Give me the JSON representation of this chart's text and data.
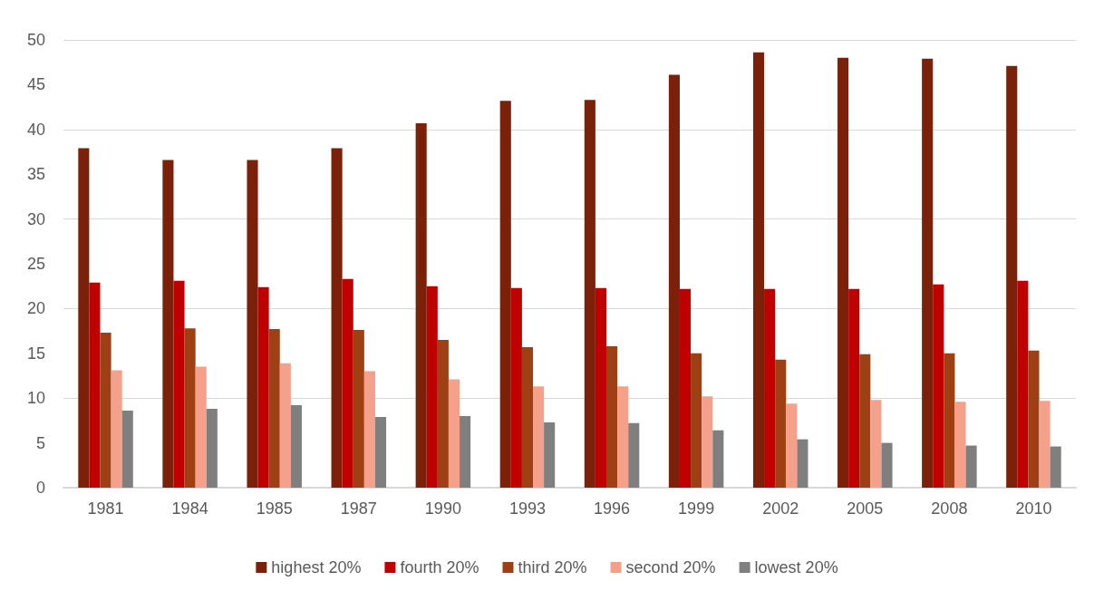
{
  "chart_data": {
    "type": "bar",
    "categories": [
      "1981",
      "1984",
      "1985",
      "1987",
      "1990",
      "1993",
      "1996",
      "1999",
      "2002",
      "2005",
      "2008",
      "2010"
    ],
    "series": [
      {
        "name": "highest 20%",
        "color": "#7b2109",
        "values": [
          37.9,
          36.6,
          36.6,
          37.9,
          40.7,
          43.2,
          43.3,
          46.1,
          48.6,
          48.0,
          47.9,
          47.1
        ]
      },
      {
        "name": "fourth 20%",
        "color": "#c00000",
        "values": [
          22.9,
          23.1,
          22.4,
          23.3,
          22.5,
          22.3,
          22.3,
          22.2,
          22.2,
          22.2,
          22.7,
          23.1
        ]
      },
      {
        "name": "third 20%",
        "color": "#9e4013",
        "values": [
          17.3,
          17.8,
          17.7,
          17.6,
          16.5,
          15.7,
          15.8,
          15.0,
          14.3,
          14.9,
          15.0,
          15.3
        ]
      },
      {
        "name": "second 20%",
        "color": "#f4a08a",
        "values": [
          13.1,
          13.5,
          13.9,
          13.0,
          12.1,
          11.3,
          11.3,
          10.2,
          9.4,
          9.8,
          9.6,
          9.7
        ]
      },
      {
        "name": "lowest 20%",
        "color": "#7f7f7f",
        "values": [
          8.6,
          8.8,
          9.2,
          7.9,
          8.0,
          7.3,
          7.2,
          6.4,
          5.4,
          5.0,
          4.7,
          4.6
        ]
      }
    ],
    "ylim": [
      0,
      50
    ],
    "yticks": [
      0,
      5,
      10,
      15,
      20,
      25,
      30,
      35,
      40,
      45,
      50
    ],
    "grid": "y",
    "legend": "bottom"
  }
}
